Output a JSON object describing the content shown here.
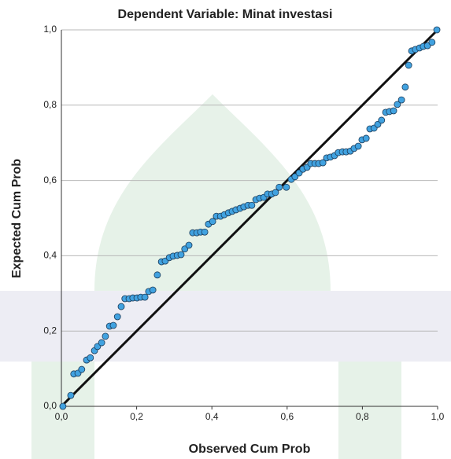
{
  "chart_data": {
    "type": "scatter",
    "title": "Dependent Variable: Minat investasi",
    "x_label": "Observed Cum Prob",
    "y_label": "Expected Cum Prob",
    "xlim": [
      0,
      1
    ],
    "ylim": [
      0,
      1
    ],
    "xticks": [
      {
        "value": 0,
        "label": "0,0"
      },
      {
        "value": 0.2,
        "label": "0,2"
      },
      {
        "value": 0.4,
        "label": "0,4"
      },
      {
        "value": 0.6,
        "label": "0,6"
      },
      {
        "value": 0.8,
        "label": "0,8"
      },
      {
        "value": 1,
        "label": "1,0"
      }
    ],
    "yticks": [
      {
        "value": 0,
        "label": "0,0"
      },
      {
        "value": 0.2,
        "label": "0,2"
      },
      {
        "value": 0.4,
        "label": "0,4"
      },
      {
        "value": 0.6,
        "label": "0,6"
      },
      {
        "value": 0.8,
        "label": "0,8"
      },
      {
        "value": 1,
        "label": "1,0"
      }
    ],
    "grid": true,
    "reference_line": true,
    "series": [
      {
        "color": "#41a2e0",
        "x": [
          0.004,
          0.025,
          0.033,
          0.044,
          0.054,
          0.067,
          0.077,
          0.088,
          0.096,
          0.107,
          0.117,
          0.128,
          0.138,
          0.149,
          0.159,
          0.169,
          0.18,
          0.19,
          0.201,
          0.211,
          0.222,
          0.232,
          0.243,
          0.255,
          0.266,
          0.276,
          0.287,
          0.297,
          0.308,
          0.318,
          0.328,
          0.339,
          0.349,
          0.36,
          0.37,
          0.381,
          0.391,
          0.402,
          0.412,
          0.423,
          0.433,
          0.444,
          0.454,
          0.464,
          0.475,
          0.485,
          0.496,
          0.506,
          0.517,
          0.527,
          0.538,
          0.548,
          0.559,
          0.569,
          0.579,
          0.598,
          0.611,
          0.621,
          0.632,
          0.642,
          0.653,
          0.663,
          0.674,
          0.684,
          0.695,
          0.705,
          0.715,
          0.726,
          0.736,
          0.747,
          0.757,
          0.768,
          0.778,
          0.789,
          0.799,
          0.81,
          0.82,
          0.831,
          0.841,
          0.851,
          0.862,
          0.872,
          0.883,
          0.893,
          0.904,
          0.914,
          0.923,
          0.931,
          0.941,
          0.952,
          0.962,
          0.973,
          0.985,
          0.998
        ],
        "values": [
          0.0,
          0.029,
          0.086,
          0.088,
          0.098,
          0.123,
          0.129,
          0.148,
          0.159,
          0.169,
          0.186,
          0.213,
          0.215,
          0.238,
          0.265,
          0.286,
          0.286,
          0.288,
          0.288,
          0.29,
          0.29,
          0.305,
          0.309,
          0.349,
          0.384,
          0.386,
          0.395,
          0.399,
          0.401,
          0.403,
          0.418,
          0.428,
          0.461,
          0.461,
          0.463,
          0.463,
          0.484,
          0.491,
          0.505,
          0.505,
          0.509,
          0.514,
          0.518,
          0.522,
          0.526,
          0.53,
          0.534,
          0.534,
          0.549,
          0.553,
          0.555,
          0.564,
          0.564,
          0.568,
          0.582,
          0.582,
          0.603,
          0.61,
          0.62,
          0.63,
          0.635,
          0.645,
          0.645,
          0.645,
          0.647,
          0.66,
          0.662,
          0.666,
          0.674,
          0.676,
          0.676,
          0.678,
          0.685,
          0.691,
          0.708,
          0.712,
          0.737,
          0.739,
          0.749,
          0.76,
          0.781,
          0.783,
          0.785,
          0.802,
          0.814,
          0.848,
          0.906,
          0.944,
          0.948,
          0.952,
          0.956,
          0.958,
          0.967,
          1.0
        ]
      }
    ]
  }
}
